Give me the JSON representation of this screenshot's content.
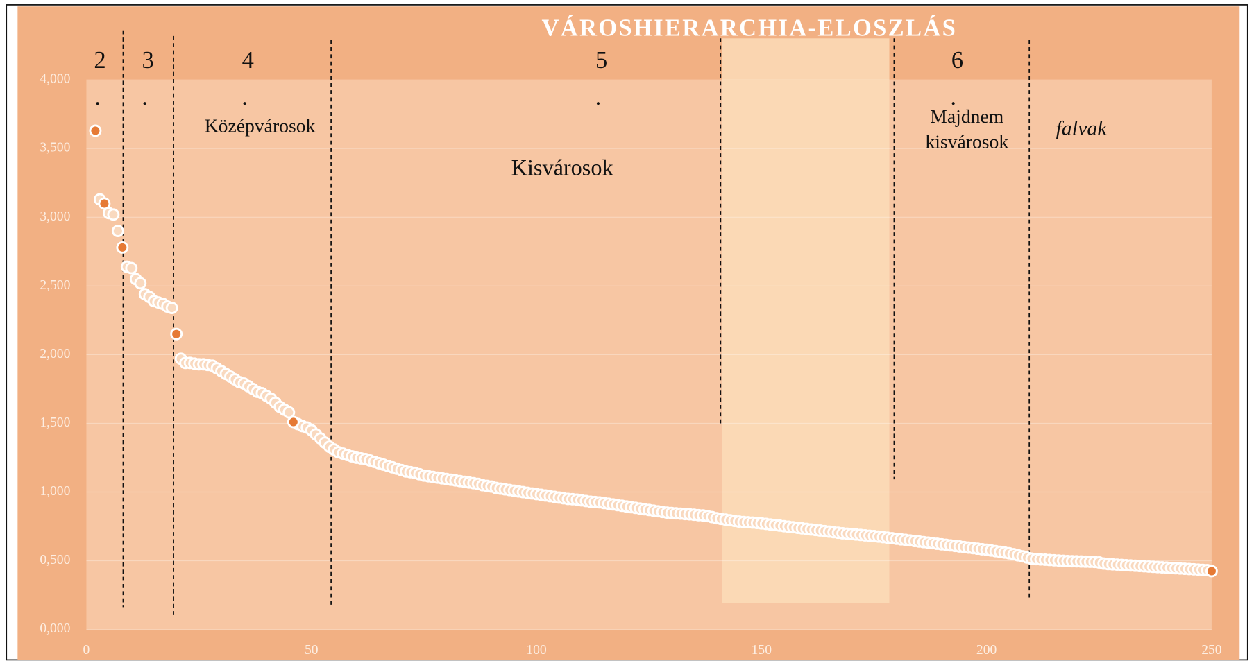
{
  "chart_data": {
    "type": "scatter",
    "title": "VÁROSHIERARCHIA-ELOSZLÁS",
    "xlim": [
      0,
      250
    ],
    "xticks": [
      0,
      50,
      100,
      150,
      200,
      250
    ],
    "ylim": [
      0,
      4000
    ],
    "yticks": [
      {
        "value": 0,
        "label": "0,000"
      },
      {
        "value": 500,
        "label": "0,500"
      },
      {
        "value": 1000,
        "label": "1,000"
      },
      {
        "value": 1500,
        "label": "1,500"
      },
      {
        "value": 2000,
        "label": "2,000"
      },
      {
        "value": 2500,
        "label": "2,500"
      },
      {
        "value": 3000,
        "label": "3,000"
      },
      {
        "value": 3500,
        "label": "3,500"
      },
      {
        "value": 4000,
        "label": "4,000"
      }
    ],
    "grid": true,
    "annotations": [
      "2",
      ".",
      "3",
      ".",
      "4",
      ".",
      "5",
      ".",
      "6",
      ".",
      "Középvárosok",
      "Kisvárosok",
      [
        "Majdnem",
        "kisvárosok"
      ],
      "falvak"
    ],
    "series": [
      {
        "color": "#f9d9bf",
        "x": [
          3,
          5,
          6,
          7,
          9,
          10,
          11,
          12,
          13,
          14,
          15,
          16,
          17,
          18,
          19,
          21,
          22,
          23,
          24,
          25,
          26,
          27,
          28,
          29,
          30,
          31,
          32,
          33,
          34,
          35,
          36,
          37,
          38,
          39,
          40,
          41,
          42,
          43,
          44,
          45,
          47,
          48,
          49,
          50,
          51,
          52,
          53,
          54,
          55,
          56,
          57,
          58,
          59,
          60,
          61,
          62,
          63,
          64,
          65,
          66,
          67,
          68,
          69,
          70,
          71,
          72,
          73,
          74,
          75,
          76,
          77,
          78,
          79,
          80,
          81,
          82,
          83,
          84,
          85,
          86,
          87,
          88,
          89,
          90,
          91,
          92,
          93,
          94,
          95,
          96,
          97,
          98,
          99,
          100,
          101,
          102,
          103,
          104,
          105,
          106,
          107,
          108,
          109,
          110,
          111,
          112,
          113,
          114,
          115,
          116,
          117,
          118,
          119,
          120,
          121,
          122,
          123,
          124,
          125,
          126,
          127,
          128,
          129,
          130,
          131,
          132,
          133,
          134,
          135,
          136,
          137,
          138,
          139,
          140,
          141,
          142,
          143,
          144,
          145,
          146,
          147,
          148,
          149,
          150,
          151,
          152,
          153,
          154,
          155,
          156,
          157,
          158,
          159,
          160,
          161,
          162,
          163,
          164,
          165,
          166,
          167,
          168,
          169,
          170,
          171,
          172,
          173,
          174,
          175,
          176,
          177,
          178,
          179,
          180,
          181,
          182,
          183,
          184,
          185,
          186,
          187,
          188,
          189,
          190,
          191,
          192,
          193,
          194,
          195,
          196,
          197,
          198,
          199,
          200,
          201,
          202,
          203,
          204,
          205,
          206,
          207,
          208,
          209,
          210,
          211,
          212,
          213,
          214,
          215,
          216,
          217,
          218,
          219,
          220,
          221,
          222,
          223,
          224,
          225,
          226,
          227,
          228,
          229,
          230,
          231,
          232,
          233,
          234,
          235,
          236,
          237,
          238,
          239,
          240,
          241,
          242,
          243,
          244,
          245,
          246,
          247,
          248,
          249
        ],
        "values": [
          3130,
          3030,
          3020,
          2900,
          2640,
          2630,
          2550,
          2520,
          2440,
          2420,
          2390,
          2380,
          2370,
          2350,
          2340,
          1970,
          1940,
          1940,
          1935,
          1930,
          1930,
          1925,
          1920,
          1900,
          1880,
          1860,
          1840,
          1820,
          1800,
          1790,
          1770,
          1750,
          1730,
          1720,
          1700,
          1680,
          1650,
          1620,
          1600,
          1580,
          1495,
          1480,
          1470,
          1450,
          1420,
          1390,
          1360,
          1330,
          1310,
          1290,
          1280,
          1270,
          1260,
          1250,
          1245,
          1240,
          1230,
          1220,
          1210,
          1200,
          1190,
          1180,
          1170,
          1160,
          1150,
          1145,
          1140,
          1130,
          1120,
          1115,
          1110,
          1105,
          1100,
          1095,
          1090,
          1085,
          1080,
          1075,
          1070,
          1065,
          1060,
          1050,
          1045,
          1040,
          1030,
          1025,
          1020,
          1015,
          1010,
          1005,
          1000,
          995,
          990,
          985,
          980,
          975,
          970,
          965,
          960,
          955,
          950,
          948,
          945,
          940,
          935,
          930,
          928,
          925,
          920,
          915,
          910,
          905,
          900,
          895,
          890,
          885,
          880,
          875,
          870,
          865,
          860,
          855,
          850,
          848,
          845,
          843,
          840,
          838,
          835,
          832,
          830,
          825,
          818,
          810,
          805,
          800,
          795,
          790,
          785,
          782,
          780,
          778,
          775,
          772,
          768,
          764,
          760,
          756,
          752,
          748,
          744,
          740,
          736,
          732,
          728,
          724,
          720,
          716,
          712,
          708,
          704,
          700,
          697,
          694,
          691,
          688,
          685,
          682,
          680,
          676,
          672,
          668,
          664,
          660,
          656,
          652,
          648,
          644,
          640,
          636,
          632,
          628,
          624,
          620,
          616,
          612,
          608,
          604,
          600,
          596,
          592,
          588,
          584,
          580,
          575,
          570,
          565,
          560,
          555,
          548,
          540,
          532,
          524,
          516,
          512,
          510,
          508,
          506,
          504,
          502,
          500,
          498,
          497,
          496,
          495,
          494,
          493,
          492,
          488,
          480,
          476,
          474,
          472,
          470,
          468,
          466,
          464,
          462,
          460,
          458,
          456,
          454,
          452,
          450,
          448,
          446,
          444,
          442,
          440,
          438,
          436,
          434,
          432
        ]
      },
      {
        "color": "#e67a35",
        "x": [
          2,
          4,
          8,
          20,
          46,
          250
        ],
        "values": [
          3630,
          3100,
          2780,
          2150,
          1510,
          425
        ]
      }
    ]
  }
}
